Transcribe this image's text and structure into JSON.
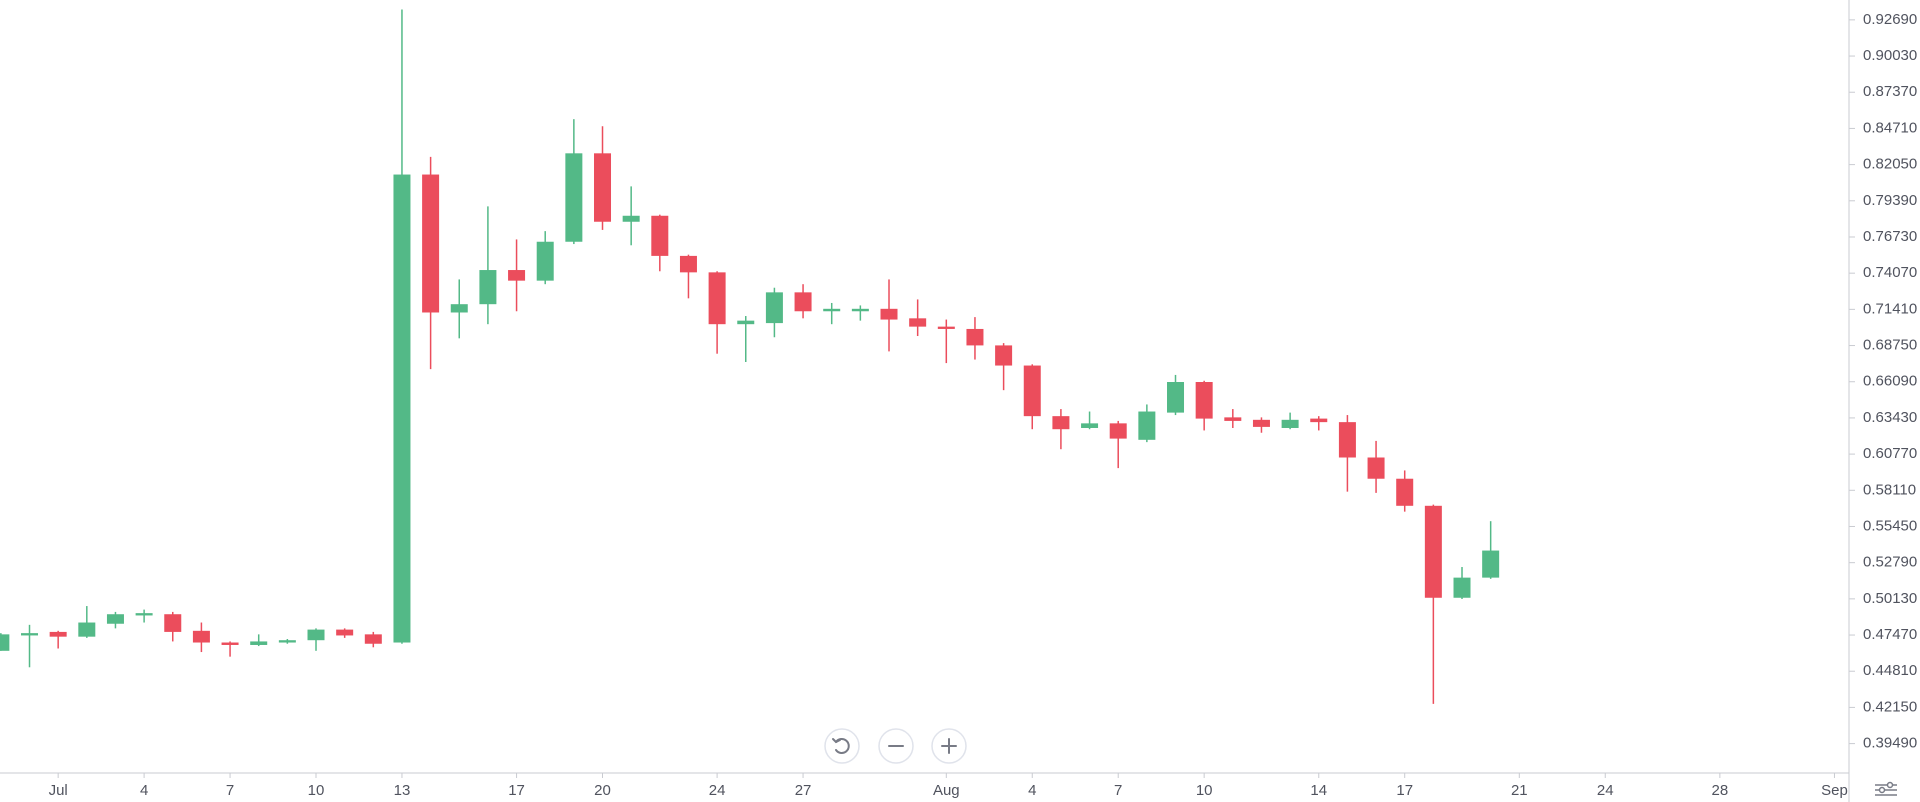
{
  "chart_data": {
    "type": "candlestick",
    "y_axis_side": "right",
    "up_color": "#53b987",
    "down_color": "#eb4d5c",
    "categories": [
      null,
      null,
      "Jul",
      null,
      null,
      "4",
      null,
      null,
      "7",
      null,
      null,
      "10",
      null,
      null,
      "13",
      null,
      null,
      null,
      "17",
      null,
      null,
      "20",
      null,
      null,
      null,
      "24",
      null,
      null,
      "27",
      null,
      null,
      null,
      null,
      "Aug",
      null,
      null,
      "4",
      null,
      null,
      "7",
      null,
      null,
      "10",
      null,
      null,
      null,
      "14",
      null,
      null,
      "17",
      null,
      null,
      null,
      "21",
      null,
      null,
      "24",
      null,
      null,
      null,
      "28",
      null,
      null,
      null,
      "Sep"
    ],
    "open": [
      0.4631,
      0.4744,
      0.477,
      0.4735,
      0.483,
      0.4891,
      0.49,
      0.4778,
      0.4692,
      0.4674,
      0.4692,
      0.4709,
      0.4787,
      0.4752,
      0.4692,
      0.8132,
      0.7118,
      0.7179,
      0.743,
      0.7352,
      0.7638,
      0.8288,
      0.7785,
      0.7829,
      0.7534,
      0.7413,
      0.7032,
      0.704,
      0.7266,
      0.7127,
      0.7127,
      0.7145,
      0.7075,
      0.7014,
      0.6997,
      0.6876,
      0.6728,
      0.6356,
      0.6269,
      0.6303,
      0.6182,
      0.6382,
      0.6607,
      0.6347,
      0.6329,
      0.6269,
      0.6338,
      0.6312,
      0.6052,
      0.5896,
      0.5697,
      0.5021,
      0.5169,
      null,
      null,
      null,
      null,
      null,
      null,
      null,
      null,
      null,
      null,
      null,
      null
    ],
    "high": [
      0.4761,
      0.4822,
      0.4778,
      0.496,
      0.4917,
      0.4934,
      0.4917,
      0.4839,
      0.47,
      0.4752,
      0.4718,
      0.4796,
      0.4796,
      0.477,
      0.9345,
      0.8262,
      0.7361,
      0.7898,
      0.7655,
      0.7716,
      0.8539,
      0.8487,
      0.8045,
      0.7837,
      0.7543,
      0.7421,
      0.7092,
      0.73,
      0.7326,
      0.7188,
      0.717,
      0.7361,
      0.7214,
      0.7066,
      0.7084,
      0.6893,
      0.6737,
      0.6408,
      0.639,
      0.6321,
      0.6442,
      0.6659,
      0.6616,
      0.6408,
      0.6347,
      0.6382,
      0.6356,
      0.6364,
      0.6174,
      0.5957,
      0.5706,
      0.5247,
      0.5584,
      null,
      null,
      null,
      null,
      null,
      null,
      null,
      null,
      null,
      null,
      null,
      null
    ],
    "low": [
      0.4631,
      0.451,
      0.4648,
      0.4726,
      0.4796,
      0.4839,
      0.47,
      0.4622,
      0.4588,
      0.4666,
      0.4683,
      0.4631,
      0.4726,
      0.4657,
      0.4683,
      0.6702,
      0.6928,
      0.7032,
      0.7127,
      0.7326,
      0.7621,
      0.7725,
      0.7612,
      0.7421,
      0.7222,
      0.6815,
      0.6754,
      0.6936,
      0.7075,
      0.7032,
      0.7058,
      0.6832,
      0.6945,
      0.6746,
      0.6772,
      0.6547,
      0.626,
      0.6113,
      0.626,
      0.5974,
      0.6165,
      0.6364,
      0.6251,
      0.6269,
      0.6234,
      0.626,
      0.6251,
      0.5801,
      0.5792,
      0.5654,
      0.4241,
      0.5012,
      0.516,
      null,
      null,
      null,
      null,
      null,
      null,
      null,
      null,
      null,
      null,
      null,
      null
    ],
    "close": [
      0.4752,
      0.4761,
      0.4735,
      0.4839,
      0.49,
      0.4908,
      0.477,
      0.4692,
      0.4674,
      0.47,
      0.4709,
      0.4787,
      0.4744,
      0.4683,
      0.8132,
      0.7118,
      0.7179,
      0.743,
      0.7352,
      0.7638,
      0.8288,
      0.7785,
      0.7829,
      0.7534,
      0.7413,
      0.7032,
      0.7058,
      0.7266,
      0.7127,
      0.7145,
      0.7145,
      0.7066,
      0.7014,
      0.6997,
      0.6876,
      0.6728,
      0.6356,
      0.626,
      0.6303,
      0.6191,
      0.639,
      0.6607,
      0.6338,
      0.6321,
      0.6277,
      0.6329,
      0.6312,
      0.6052,
      0.5896,
      0.5697,
      0.5021,
      0.5169,
      0.5368,
      null,
      null,
      null,
      null,
      null,
      null,
      null,
      null,
      null,
      null,
      null,
      null
    ],
    "ylim": [
      0.3949,
      0.9415
    ],
    "yticks": [
      {
        "value": 0.3949,
        "label": "0.39490"
      },
      {
        "value": 0.4215,
        "label": "0.42150"
      },
      {
        "value": 0.4481,
        "label": "0.44810"
      },
      {
        "value": 0.4747,
        "label": "0.47470"
      },
      {
        "value": 0.5013,
        "label": "0.50130"
      },
      {
        "value": 0.5279,
        "label": "0.52790"
      },
      {
        "value": 0.5545,
        "label": "0.55450"
      },
      {
        "value": 0.5811,
        "label": "0.58110"
      },
      {
        "value": 0.6077,
        "label": "0.60770"
      },
      {
        "value": 0.6343,
        "label": "0.63430"
      },
      {
        "value": 0.6609,
        "label": "0.66090"
      },
      {
        "value": 0.6875,
        "label": "0.68750"
      },
      {
        "value": 0.7141,
        "label": "0.71410"
      },
      {
        "value": 0.7407,
        "label": "0.74070"
      },
      {
        "value": 0.7673,
        "label": "0.76730"
      },
      {
        "value": 0.7939,
        "label": "0.79390"
      },
      {
        "value": 0.8205,
        "label": "0.82050"
      },
      {
        "value": 0.8471,
        "label": "0.84710"
      },
      {
        "value": 0.8737,
        "label": "0.87370"
      },
      {
        "value": 0.9003,
        "label": "0.90030"
      },
      {
        "value": 0.9269,
        "label": "0.92690"
      }
    ]
  }
}
